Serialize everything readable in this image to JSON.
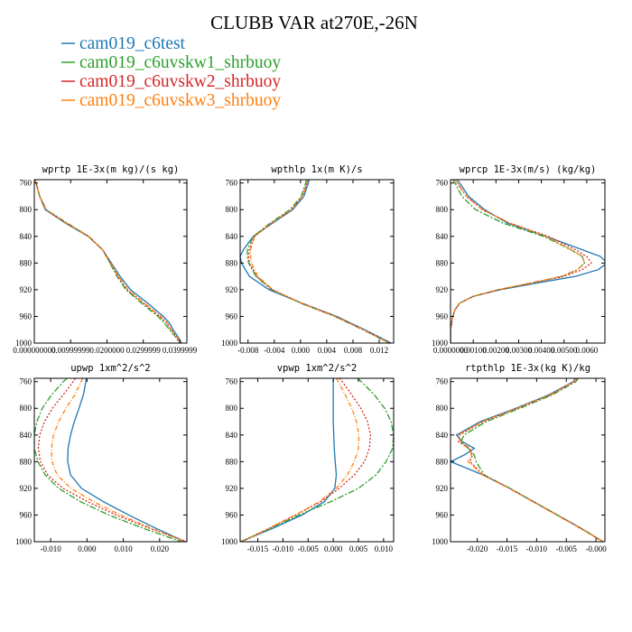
{
  "title": "CLUBB VAR at270E,-26N",
  "legend": [
    {
      "name": "cam019_c6test",
      "color": "#1f77b4",
      "dash": ""
    },
    {
      "name": "cam019_c6uvskw1_shrbuoy",
      "color": "#2ca02c",
      "dash": "7,2,2,2"
    },
    {
      "name": "cam019_c6uvskw2_shrbuoy",
      "color": "#d62728",
      "dash": "2,2"
    },
    {
      "name": "cam019_c6uvskw3_shrbuoy",
      "color": "#ff7f0e",
      "dash": "5,2,1,2"
    }
  ],
  "chart_data": [
    {
      "type": "line",
      "title": "wprtp  1E-3x(m kg)/(s kg)",
      "xlim": [
        0,
        0.042
      ],
      "ylim": [
        1000,
        755
      ],
      "xticks": [
        0,
        0.01,
        0.02,
        0.03,
        0.04
      ],
      "xtick_labels": [
        "0.000000000",
        "0.00999999",
        "0.0200000",
        "0.0299999",
        "0.0399999"
      ],
      "yticks": [
        760,
        800,
        840,
        880,
        920,
        960,
        1000
      ],
      "y": [
        755,
        760,
        780,
        800,
        820,
        840,
        860,
        880,
        900,
        920,
        940,
        960,
        970,
        980,
        990,
        1000
      ],
      "series": [
        {
          "name": "cam019_c6test",
          "values": [
            0.0002,
            0.0005,
            0.0015,
            0.003,
            0.0085,
            0.0148,
            0.0188,
            0.0212,
            0.0236,
            0.0265,
            0.0312,
            0.0355,
            0.0372,
            0.0382,
            0.0395,
            0.0405
          ]
        },
        {
          "name": "cam019_c6uvskw1_shrbuoy",
          "values": [
            0.0002,
            0.0005,
            0.0015,
            0.0033,
            0.009,
            0.015,
            0.0188,
            0.0208,
            0.0228,
            0.0252,
            0.0295,
            0.034,
            0.0358,
            0.0372,
            0.0388,
            0.04
          ]
        },
        {
          "name": "cam019_c6uvskw2_shrbuoy",
          "values": [
            0.0002,
            0.0005,
            0.0015,
            0.0032,
            0.0088,
            0.0149,
            0.0188,
            0.0209,
            0.023,
            0.0256,
            0.03,
            0.0345,
            0.0364,
            0.0376,
            0.0391,
            0.0402
          ]
        },
        {
          "name": "cam019_c6uvskw3_shrbuoy",
          "values": [
            0.0002,
            0.0005,
            0.0015,
            0.0032,
            0.0088,
            0.0149,
            0.0188,
            0.021,
            0.0232,
            0.0258,
            0.0303,
            0.0348,
            0.0366,
            0.0378,
            0.0392,
            0.0403
          ]
        }
      ]
    },
    {
      "type": "line",
      "title": "wpthlp  1x(m K)/s",
      "xlim": [
        -0.0092,
        0.0142
      ],
      "ylim": [
        1000,
        755
      ],
      "xticks": [
        -0.008,
        -0.004,
        0,
        0.004,
        0.008,
        0.012
      ],
      "xtick_labels": [
        "-0.008",
        "-0.004",
        "0.000",
        "0.004",
        "0.008",
        "0.012"
      ],
      "yticks": [
        760,
        800,
        840,
        880,
        920,
        960,
        1000
      ],
      "y": [
        755,
        760,
        780,
        800,
        820,
        840,
        860,
        870,
        880,
        900,
        920,
        940,
        960,
        980,
        1000
      ],
      "series": [
        {
          "name": "cam019_c6test",
          "values": [
            0.0013,
            0.0012,
            0.0005,
            -0.0012,
            -0.0042,
            -0.0072,
            -0.0087,
            -0.0092,
            -0.009,
            -0.0078,
            -0.0048,
            0.0002,
            0.0055,
            0.0098,
            0.0138
          ]
        },
        {
          "name": "cam019_c6uvskw1_shrbuoy",
          "values": [
            0.0009,
            0.0008,
            0.0001,
            -0.0016,
            -0.0046,
            -0.0072,
            -0.0081,
            -0.0081,
            -0.0079,
            -0.0068,
            -0.0044,
            0.0,
            0.0052,
            0.0095,
            0.0135
          ]
        },
        {
          "name": "cam019_c6uvskw2_shrbuoy",
          "values": [
            0.0011,
            0.001,
            0.0003,
            -0.0014,
            -0.0044,
            -0.007,
            -0.0078,
            -0.0079,
            -0.0078,
            -0.0067,
            -0.0043,
            0.0001,
            0.0053,
            0.0096,
            0.0136
          ]
        },
        {
          "name": "cam019_c6uvskw3_shrbuoy",
          "values": [
            0.0011,
            0.001,
            0.0003,
            -0.0014,
            -0.0044,
            -0.007,
            -0.0076,
            -0.0076,
            -0.0075,
            -0.0065,
            -0.0042,
            0.0001,
            0.0053,
            0.0096,
            0.0136
          ]
        }
      ]
    },
    {
      "type": "line",
      "title": "wprcp  1E-3x(m/s) (kg/kg)",
      "xlim": [
        0,
        0.0068
      ],
      "ylim": [
        1000,
        755
      ],
      "xticks": [
        0,
        0.001,
        0.002,
        0.003,
        0.004,
        0.005,
        0.006
      ],
      "xtick_labels": [
        "0.0000000",
        "0.00100",
        "0.00200",
        "0.00300",
        "0.00400",
        "0.00500",
        "0.0060"
      ],
      "yticks": [
        760,
        800,
        840,
        880,
        920,
        960,
        1000
      ],
      "y": [
        755,
        760,
        780,
        800,
        820,
        840,
        860,
        870,
        880,
        890,
        900,
        910,
        920,
        930,
        940,
        950,
        960,
        980,
        1000
      ],
      "series": [
        {
          "name": "cam019_c6test",
          "values": [
            0.0003,
            0.0004,
            0.0008,
            0.0015,
            0.0025,
            0.0042,
            0.0058,
            0.0066,
            0.0069,
            0.0065,
            0.0055,
            0.0038,
            0.0022,
            0.001,
            0.0004,
            0.0002,
            0.0001,
            0.0,
            0.0
          ]
        },
        {
          "name": "cam019_c6uvskw1_shrbuoy",
          "values": [
            0.0001,
            0.0002,
            0.0005,
            0.0011,
            0.0023,
            0.0041,
            0.0053,
            0.0058,
            0.0059,
            0.0056,
            0.0049,
            0.0036,
            0.0021,
            0.001,
            0.0004,
            0.0002,
            0.0001,
            0.0,
            0.0
          ]
        },
        {
          "name": "cam019_c6uvskw2_shrbuoy",
          "values": [
            0.0002,
            0.0003,
            0.0007,
            0.0014,
            0.0026,
            0.0043,
            0.0055,
            0.006,
            0.0062,
            0.0058,
            0.005,
            0.0036,
            0.0021,
            0.001,
            0.0004,
            0.0002,
            0.0001,
            0.0,
            0.0
          ]
        },
        {
          "name": "cam019_c6uvskw3_shrbuoy",
          "values": [
            0.0002,
            0.0003,
            0.0007,
            0.0014,
            0.0026,
            0.0042,
            0.0053,
            0.0058,
            0.0059,
            0.0056,
            0.0049,
            0.0035,
            0.0021,
            0.001,
            0.0004,
            0.0002,
            0.0001,
            0.0,
            0.0
          ]
        }
      ]
    },
    {
      "type": "line",
      "title": "upwp  1xm^2/s^2",
      "xlim": [
        -0.0145,
        0.0275
      ],
      "ylim": [
        1000,
        755
      ],
      "xticks": [
        -0.01,
        0,
        0.01,
        0.02
      ],
      "xtick_labels": [
        "-0.010",
        "0.000",
        "0.010",
        "0.020"
      ],
      "yticks": [
        760,
        800,
        840,
        880,
        920,
        960,
        1000
      ],
      "y": [
        755,
        760,
        780,
        800,
        820,
        840,
        860,
        880,
        900,
        920,
        940,
        960,
        980,
        1000
      ],
      "series": [
        {
          "name": "cam019_c6test",
          "values": [
            -0.0002,
            -0.0003,
            -0.001,
            -0.0022,
            -0.0035,
            -0.0045,
            -0.0052,
            -0.0053,
            -0.0045,
            -0.0015,
            0.0045,
            0.0115,
            0.019,
            0.027
          ]
        },
        {
          "name": "cam019_c6uvskw1_shrbuoy",
          "values": [
            -0.0055,
            -0.0065,
            -0.0098,
            -0.0123,
            -0.0138,
            -0.0145,
            -0.0145,
            -0.0135,
            -0.0115,
            -0.0078,
            -0.0018,
            0.006,
            0.0155,
            0.026
          ]
        },
        {
          "name": "cam019_c6uvskw2_shrbuoy",
          "values": [
            -0.0032,
            -0.0038,
            -0.0066,
            -0.0095,
            -0.0117,
            -0.013,
            -0.0134,
            -0.0128,
            -0.0108,
            -0.0066,
            0.0002,
            0.008,
            0.0172,
            0.0275
          ]
        },
        {
          "name": "cam019_c6uvskw3_shrbuoy",
          "values": [
            -0.0012,
            -0.0016,
            -0.0034,
            -0.0058,
            -0.0078,
            -0.0092,
            -0.0098,
            -0.0096,
            -0.0082,
            -0.0044,
            0.0018,
            0.0092,
            0.0178,
            0.027
          ]
        }
      ]
    },
    {
      "type": "line",
      "title": "vpwp  1xm^2/s^2",
      "xlim": [
        -0.0185,
        0.012
      ],
      "ylim": [
        1000,
        755
      ],
      "xticks": [
        -0.015,
        -0.01,
        -0.005,
        0,
        0.005,
        0.01
      ],
      "xtick_labels": [
        "-0.015",
        "-0.010",
        "-0.005",
        "0.000",
        "0.005",
        "0.010"
      ],
      "yticks": [
        760,
        800,
        840,
        880,
        920,
        960,
        1000
      ],
      "y": [
        755,
        760,
        780,
        800,
        820,
        840,
        860,
        880,
        900,
        920,
        940,
        960,
        980,
        1000
      ],
      "series": [
        {
          "name": "cam019_c6test",
          "values": [
            0.0,
            0.0,
            0.0,
            0.0,
            0.0,
            0.0001,
            0.0002,
            0.0004,
            0.0006,
            0.0003,
            -0.0018,
            -0.0062,
            -0.012,
            -0.0185
          ]
        },
        {
          "name": "cam019_c6uvskw1_shrbuoy",
          "values": [
            0.0048,
            0.0056,
            0.0082,
            0.0102,
            0.0115,
            0.012,
            0.0118,
            0.0105,
            0.0085,
            0.005,
            -0.0005,
            -0.0068,
            -0.0125,
            -0.0182
          ]
        },
        {
          "name": "cam019_c6uvskw2_shrbuoy",
          "values": [
            0.0012,
            0.0018,
            0.0037,
            0.0055,
            0.0068,
            0.0074,
            0.0072,
            0.0062,
            0.0042,
            0.0012,
            -0.0025,
            -0.0075,
            -0.0128,
            -0.0183
          ]
        },
        {
          "name": "cam019_c6uvskw3_shrbuoy",
          "values": [
            0.0006,
            0.001,
            0.0024,
            0.0037,
            0.0046,
            0.0051,
            0.005,
            0.0042,
            0.0028,
            0.0006,
            -0.0028,
            -0.0075,
            -0.0128,
            -0.0183
          ]
        }
      ]
    },
    {
      "type": "line",
      "title": "rtpthlp  1E-3x(kg K)/kg",
      "xlim": [
        -0.0245,
        0.0015
      ],
      "ylim": [
        1000,
        755
      ],
      "xticks": [
        -0.02,
        -0.015,
        -0.01,
        -0.005,
        0
      ],
      "xtick_labels": [
        "-0.020",
        "-0.015",
        "-0.010",
        "-0.005",
        "-0.000"
      ],
      "yticks": [
        760,
        800,
        840,
        880,
        920,
        960,
        1000
      ],
      "y": [
        755,
        760,
        780,
        800,
        820,
        840,
        850,
        860,
        870,
        880,
        900,
        920,
        940,
        960,
        980,
        1000
      ],
      "series": [
        {
          "name": "cam019_c6test",
          "values": [
            -0.0035,
            -0.0038,
            -0.008,
            -0.0135,
            -0.0195,
            -0.0235,
            -0.0225,
            -0.0205,
            -0.0222,
            -0.0245,
            -0.019,
            -0.0145,
            -0.0105,
            -0.0065,
            -0.0025,
            0.0012
          ]
        },
        {
          "name": "cam019_c6uvskw1_shrbuoy",
          "values": [
            -0.003,
            -0.0034,
            -0.0074,
            -0.0128,
            -0.0185,
            -0.0222,
            -0.0228,
            -0.0215,
            -0.0205,
            -0.0202,
            -0.0188,
            -0.0145,
            -0.0105,
            -0.0065,
            -0.0025,
            0.0012
          ]
        },
        {
          "name": "cam019_c6uvskw2_shrbuoy",
          "values": [
            -0.0032,
            -0.0036,
            -0.0077,
            -0.0132,
            -0.019,
            -0.023,
            -0.0232,
            -0.0214,
            -0.0208,
            -0.0212,
            -0.019,
            -0.0146,
            -0.0106,
            -0.0066,
            -0.0026,
            0.0012
          ]
        },
        {
          "name": "cam019_c6uvskw3_shrbuoy",
          "values": [
            -0.0033,
            -0.0037,
            -0.0078,
            -0.0133,
            -0.0192,
            -0.0232,
            -0.0228,
            -0.0212,
            -0.021,
            -0.0215,
            -0.0191,
            -0.0146,
            -0.0106,
            -0.0066,
            -0.0026,
            0.0012
          ]
        }
      ]
    }
  ]
}
